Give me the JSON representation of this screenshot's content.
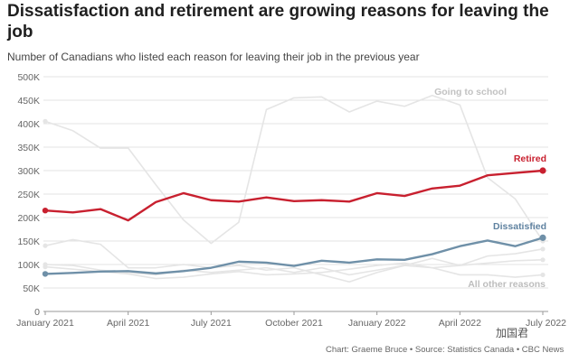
{
  "title": "Dissatisfaction and retirement are growing reasons for leaving the job",
  "subtitle": "Number of Canadians who listed each reason for leaving their job in the previous year",
  "source": "Chart: Graeme Bruce • Source: Statistics Canada • CBC News",
  "watermark": "加国君",
  "chart_data": {
    "type": "line",
    "x": [
      "Jan 2021",
      "Feb 2021",
      "Mar 2021",
      "Apr 2021",
      "May 2021",
      "Jun 2021",
      "Jul 2021",
      "Aug 2021",
      "Sep 2021",
      "Oct 2021",
      "Nov 2021",
      "Dec 2021",
      "Jan 2022",
      "Feb 2022",
      "Mar 2022",
      "Apr 2022",
      "May 2022",
      "Jun 2022",
      "Jul 2022"
    ],
    "x_tick_labels": [
      {
        "index": 0,
        "label": "January 2021"
      },
      {
        "index": 3,
        "label": "April 2021"
      },
      {
        "index": 6,
        "label": "July 2021"
      },
      {
        "index": 9,
        "label": "October 2021"
      },
      {
        "index": 12,
        "label": "January 2022"
      },
      {
        "index": 15,
        "label": "April 2022"
      },
      {
        "index": 18,
        "label": "July 2022"
      }
    ],
    "y_ticks": [
      "0",
      "50K",
      "100K",
      "150K",
      "200K",
      "250K",
      "300K",
      "350K",
      "400K",
      "450K",
      "500K"
    ],
    "ylim": [
      0,
      500000
    ],
    "grid": true,
    "series": [
      {
        "name": "Going to school",
        "color": "#e5e5e5",
        "label_color": "#c2c2c2",
        "values": [
          405000,
          385000,
          348000,
          348000,
          270000,
          195000,
          145000,
          190000,
          430000,
          455000,
          457000,
          425000,
          448000,
          437000,
          460000,
          440000,
          285000,
          240000,
          150000
        ]
      },
      {
        "color": "#e5e5e5",
        "values": [
          140000,
          153000,
          143000,
          93000,
          93000,
          100000,
          93000,
          98000,
          88000,
          93000,
          78000,
          63000,
          83000,
          98000,
          113000,
          98000,
          118000,
          123000,
          133000
        ]
      },
      {
        "color": "#e5e5e5",
        "values": [
          100000,
          98000,
          88000,
          83000,
          78000,
          88000,
          83000,
          88000,
          93000,
          83000,
          93000,
          78000,
          88000,
          98000,
          93000,
          78000,
          78000,
          73000,
          78000
        ]
      },
      {
        "name": "All other reasons",
        "color": "#e5e5e5",
        "label_color": "#bdbdbd",
        "values": [
          95000,
          90000,
          85000,
          80000,
          70000,
          73000,
          80000,
          85000,
          78000,
          80000,
          83000,
          90000,
          98000,
          103000,
          93000,
          98000,
          103000,
          108000,
          110000
        ]
      },
      {
        "name": "Retired",
        "color": "#c8202f",
        "label_color": "#c8202f",
        "values": [
          215000,
          211000,
          218000,
          194000,
          233000,
          252000,
          237000,
          234000,
          243000,
          235000,
          237000,
          234000,
          252000,
          246000,
          262000,
          268000,
          290000,
          295000,
          300000
        ]
      },
      {
        "name": "Dissatisfied",
        "color": "#6f90a8",
        "label_color": "#5f82a0",
        "values": [
          80000,
          82000,
          85000,
          86000,
          81000,
          86000,
          93000,
          106000,
          104000,
          97000,
          108000,
          104000,
          111000,
          110000,
          122000,
          139000,
          151000,
          139000,
          157000
        ]
      }
    ]
  }
}
